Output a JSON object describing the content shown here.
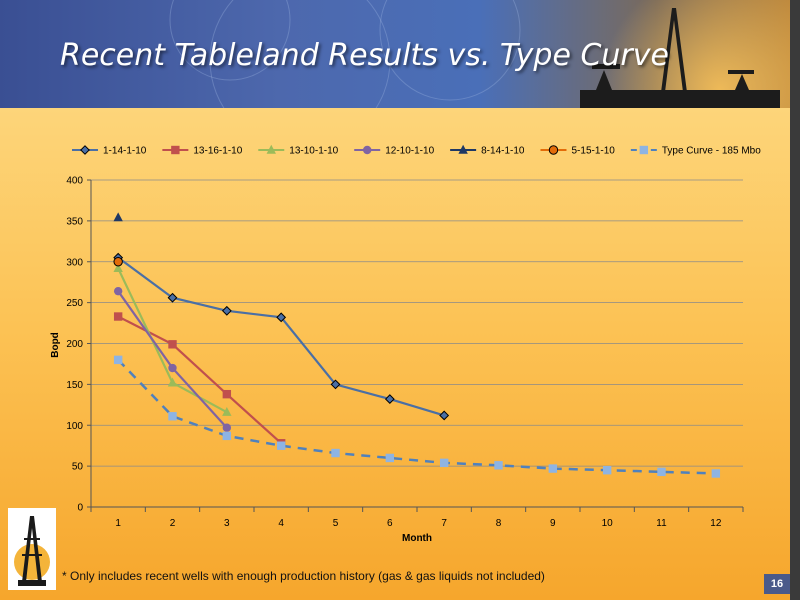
{
  "slide": {
    "title": "Recent Tableland Results vs. Type Curve",
    "footnote": "* Only includes recent wells with enough production history (gas & gas liquids not included)",
    "page_number": "16",
    "colors": {
      "banner": "#4a66ad",
      "background_top": "#fdd57a",
      "background_bottom": "#f6a62c"
    }
  },
  "chart_data": {
    "type": "line",
    "title": "",
    "xlabel": "Month",
    "ylabel": "Bopd",
    "x": [
      1,
      2,
      3,
      4,
      5,
      6,
      7,
      8,
      9,
      10,
      11,
      12
    ],
    "xticks": [
      "1",
      "2",
      "3",
      "4",
      "5",
      "6",
      "7",
      "8",
      "9",
      "10",
      "11",
      "12"
    ],
    "ylim": [
      0,
      400
    ],
    "yticks": [
      0,
      50,
      100,
      150,
      200,
      250,
      300,
      350,
      400
    ],
    "grid": "horizontal",
    "legend_position": "top",
    "series": [
      {
        "name": "1-14-1-10",
        "color": "#4a6fa5",
        "marker": "diamond",
        "dashed": false,
        "x": [
          1,
          2,
          3,
          4,
          5,
          6,
          7
        ],
        "values": [
          305,
          256,
          240,
          232,
          150,
          132,
          112
        ]
      },
      {
        "name": "13-16-1-10",
        "color": "#c0504d",
        "marker": "square",
        "dashed": false,
        "x": [
          1,
          2,
          3,
          4
        ],
        "values": [
          233,
          199,
          138,
          78
        ]
      },
      {
        "name": "13-10-1-10",
        "color": "#9bbb59",
        "marker": "triangle",
        "dashed": false,
        "x": [
          1,
          2,
          3
        ],
        "values": [
          292,
          152,
          116
        ]
      },
      {
        "name": "12-10-1-10",
        "color": "#8064a2",
        "marker": "circle",
        "dashed": false,
        "x": [
          1,
          2,
          3
        ],
        "values": [
          264,
          170,
          97
        ]
      },
      {
        "name": "8-14-1-10",
        "color": "#1f3864",
        "marker": "triangle",
        "dashed": false,
        "x": [
          1
        ],
        "values": [
          354
        ]
      },
      {
        "name": "5-15-1-10",
        "color": "#e36c09",
        "marker": "circle",
        "dashed": false,
        "x": [
          1
        ],
        "values": [
          300
        ]
      },
      {
        "name": "Type Curve -  185 Mbo",
        "color": "#8eb4e3",
        "line_color": "#4f81bd",
        "marker": "square",
        "dashed": true,
        "x": [
          1,
          2,
          3,
          4,
          5,
          6,
          7,
          8,
          9,
          10,
          11,
          12
        ],
        "values": [
          180,
          111,
          87,
          75,
          66,
          60,
          54,
          51,
          47,
          45,
          43,
          41
        ]
      }
    ]
  }
}
